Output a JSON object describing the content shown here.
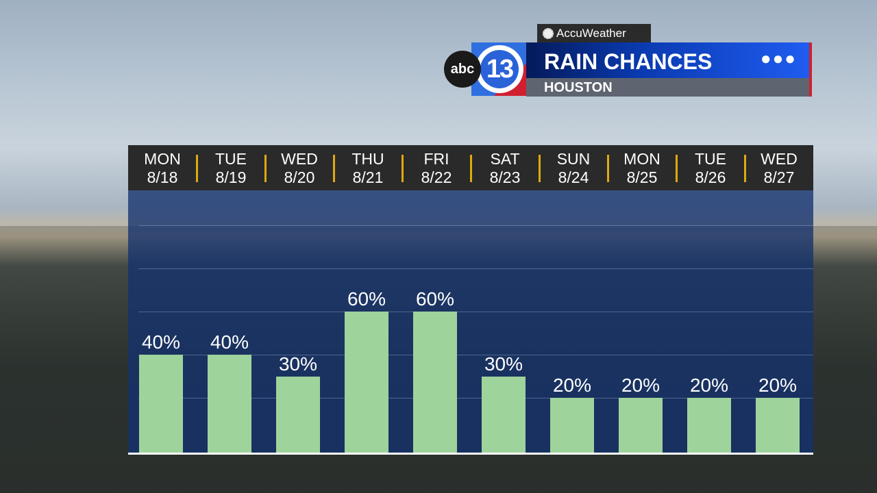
{
  "header": {
    "brand": "AccuWeather",
    "station_abc": "abc",
    "station_num": "13",
    "title": "RAIN CHANCES",
    "subtitle": "HOUSTON",
    "menu_icon": "ellipsis-icon"
  },
  "chart_data": {
    "type": "bar",
    "title": "RAIN CHANCES",
    "subtitle": "HOUSTON",
    "categories": [
      {
        "day": "MON",
        "date": "8/18"
      },
      {
        "day": "TUE",
        "date": "8/19"
      },
      {
        "day": "WED",
        "date": "8/20"
      },
      {
        "day": "THU",
        "date": "8/21"
      },
      {
        "day": "FRI",
        "date": "8/22"
      },
      {
        "day": "SAT",
        "date": "8/23"
      },
      {
        "day": "SUN",
        "date": "8/24"
      },
      {
        "day": "MON",
        "date": "8/25"
      },
      {
        "day": "TUE",
        "date": "8/26"
      },
      {
        "day": "WED",
        "date": "8/27"
      }
    ],
    "values": [
      40,
      40,
      30,
      60,
      60,
      30,
      20,
      20,
      20,
      20
    ],
    "labels": [
      "40%",
      "40%",
      "30%",
      "60%",
      "60%",
      "30%",
      "20%",
      "20%",
      "20%",
      "20%"
    ],
    "ylim": [
      0,
      100
    ],
    "grid": true,
    "bar_color": "#9fd39c",
    "separator_color": "#e0aa10"
  }
}
